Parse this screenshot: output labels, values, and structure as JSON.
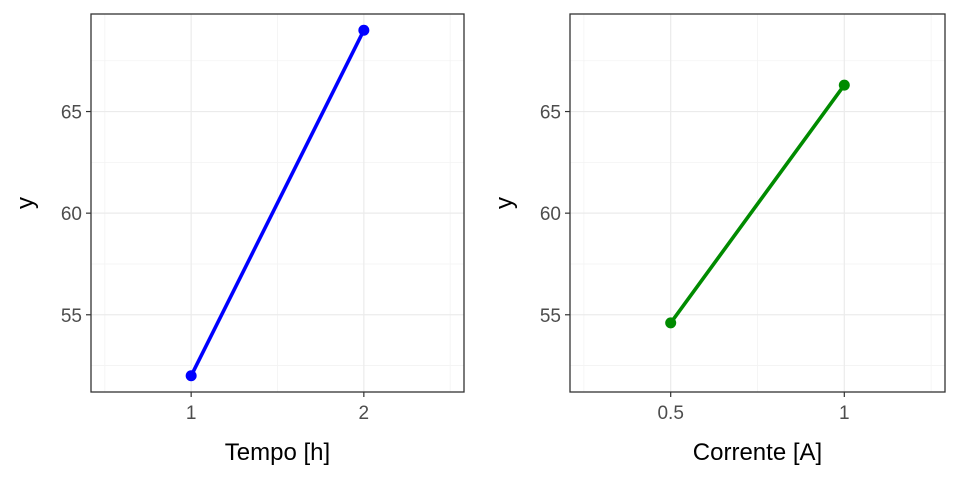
{
  "chart_data": [
    {
      "type": "line",
      "xlabel": "Tempo [h]",
      "ylabel": "y",
      "x": [
        1,
        2
      ],
      "x_ticks": [
        1,
        2
      ],
      "x_tick_labels": [
        "1",
        "2"
      ],
      "xlim": [
        0.42,
        2.58
      ],
      "y_ticks": [
        55,
        60,
        65
      ],
      "y_tick_labels": [
        "55",
        "60",
        "65"
      ],
      "ylim": [
        51.2,
        69.8
      ],
      "grid": true,
      "series": [
        {
          "values": [
            52.0,
            69.0
          ],
          "color": "#0000ff"
        }
      ]
    },
    {
      "type": "line",
      "xlabel": "Corrente [A]",
      "ylabel": "y",
      "x": [
        0.5,
        1
      ],
      "x_ticks": [
        0.5,
        1
      ],
      "x_tick_labels": [
        "0.5",
        "1"
      ],
      "xlim": [
        0.21,
        1.29
      ],
      "y_ticks": [
        55,
        60,
        65
      ],
      "y_tick_labels": [
        "55",
        "60",
        "65"
      ],
      "ylim": [
        51.2,
        69.8
      ],
      "grid": true,
      "series": [
        {
          "values": [
            54.6,
            66.3
          ],
          "color": "#008b00"
        }
      ]
    }
  ]
}
